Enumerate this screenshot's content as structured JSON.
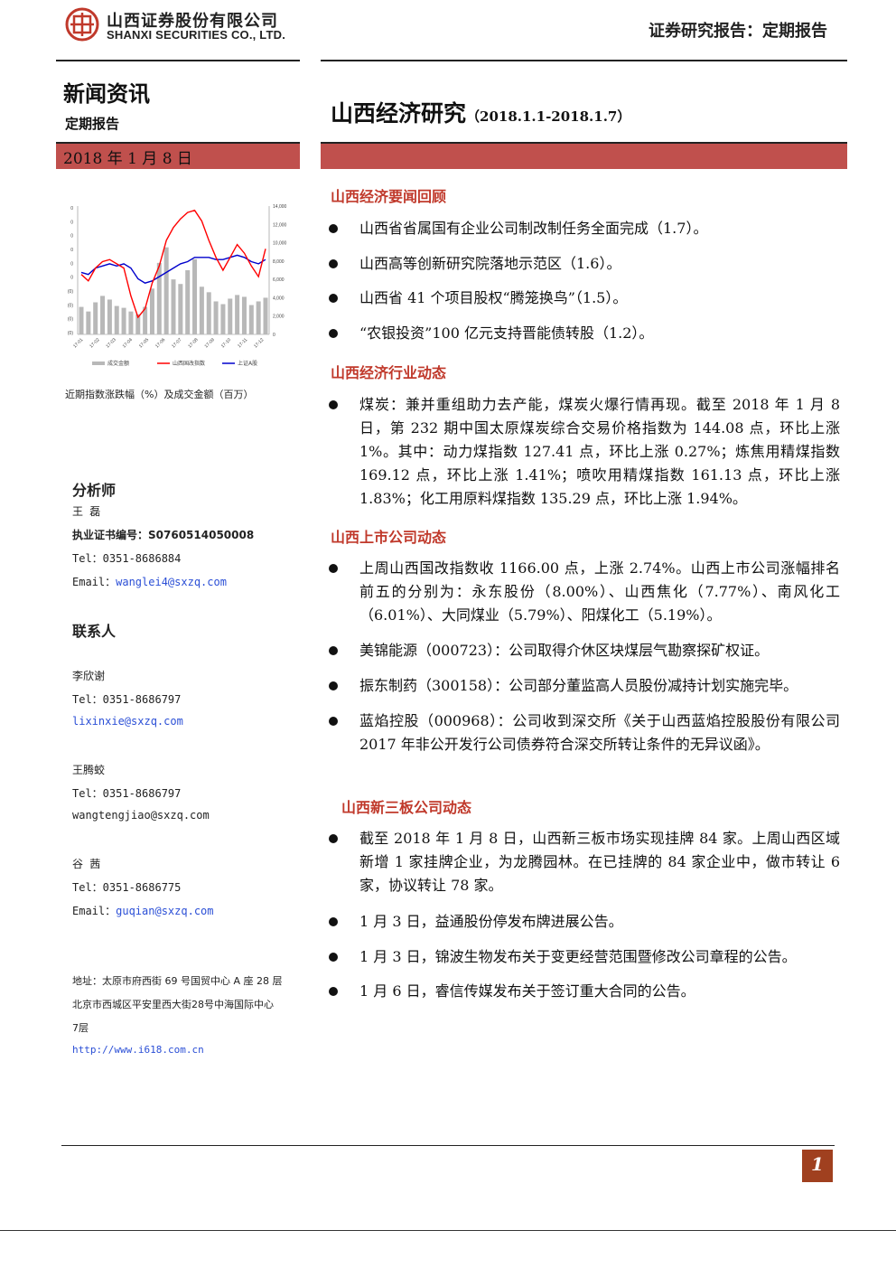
{
  "header": {
    "company_cn": "山西证券股份有限公司",
    "company_en": "SHANXI SECURITIES CO., LTD.",
    "report_type": "证券研究报告：定期报告"
  },
  "left": {
    "section_title": "新闻资讯",
    "subtitle": "定期报告",
    "date": "2018 年 1 月 8 日",
    "chart_caption": "近期指数涨跌幅（%）及成交金额（百万）"
  },
  "chart_data": {
    "type": "line",
    "title": "",
    "x_ticks": [
      "17-01",
      "17-02",
      "17-03",
      "17-04",
      "17-05",
      "17-06",
      "17-07",
      "17-08",
      "17-09",
      "17-10",
      "17-11",
      "17-12"
    ],
    "y_left_ticks": [
      "0",
      "0",
      "0",
      "0",
      "0",
      "0",
      "(0)",
      "(0)",
      "(0)",
      "(0)"
    ],
    "y_right_ticks": [
      "14,000",
      "12,000",
      "10,000",
      "8,000",
      "6,000",
      "4,000",
      "2,000",
      "0"
    ],
    "legend": [
      "成交金额",
      "山西国改指数",
      "上证A股"
    ],
    "series": [
      {
        "name": "山西国改指数",
        "color": "#ff0000",
        "values": [
          -2,
          -5,
          1,
          4,
          5,
          3,
          1,
          -12,
          -22,
          -18,
          -6,
          2,
          14,
          20,
          24,
          27,
          28,
          23,
          14,
          6,
          0,
          6,
          12,
          8,
          2,
          -3,
          10
        ]
      },
      {
        "name": "上证A股",
        "color": "#0000cc",
        "values": [
          -1,
          -2,
          1,
          2,
          3,
          2,
          3,
          1,
          -4,
          -6,
          -5,
          -3,
          -1,
          1,
          3,
          4,
          6,
          6,
          6,
          5,
          5,
          6,
          7,
          6,
          4,
          3,
          5
        ]
      },
      {
        "name": "成交金额",
        "color": "#b8b8b8",
        "values": [
          3000,
          2500,
          3500,
          4200,
          3800,
          3100,
          2900,
          2500,
          2200,
          3000,
          5000,
          7800,
          9500,
          6000,
          5500,
          7000,
          8200,
          5200,
          4600,
          3600,
          3300,
          3900,
          4300,
          4100,
          3200,
          3600,
          4000
        ]
      }
    ]
  },
  "analyst": {
    "heading": "分析师",
    "name": "王 磊",
    "cert_label": "执业证书编号：",
    "cert_no": "S0760514050008",
    "tel": "Tel：0351-8686884",
    "email_label": "Email：",
    "email": "wanglei4@sxzq.com"
  },
  "contacts": {
    "heading": "联系人",
    "people": [
      {
        "name": "李欣谢",
        "tel": "Tel：0351-8686797",
        "email_label": "",
        "email": "lixinxie@sxzq.com"
      },
      {
        "name": "王腾蛟",
        "tel": "Tel：0351-8686797",
        "email_label": "",
        "email": "wangtengjiao@sxzq.com"
      },
      {
        "name": "谷 茜",
        "tel": "Tel：0351-8686775",
        "email_label": "Email：",
        "email": "guqian@sxzq.com"
      }
    ]
  },
  "address": {
    "line1": "地址：太原市府西街 69 号国贸中心 A 座 28 层",
    "line2": "北京市西城区平安里西大街28号中海国际中心",
    "line3": "7层",
    "url": "http://www.i618.com.cn"
  },
  "main": {
    "title": "山西经济研究",
    "range": "（2018.1.1-2018.1.7）",
    "sections": [
      {
        "heading": "山西经济要闻回顾",
        "items": [
          "山西省省属国有企业公司制改制任务全面完成（1.7）。",
          "山西高等创新研究院落地示范区（1.6）。",
          "山西省 41 个项目股权“腾笼换鸟”（1.5）。",
          "“农银投资”100 亿元支持晋能债转股（1.2）。"
        ]
      },
      {
        "heading": "山西经济行业动态",
        "items": [
          "煤炭：兼并重组助力去产能，煤炭火爆行情再现。截至 2018 年 1 月 8 日，第 232 期中国太原煤炭综合交易价格指数为 144.08 点，环比上涨 1%。其中：动力煤指数 127.41 点，环比上涨 0.27%；炼焦用精煤指数 169.12 点，环比上涨 1.41%；喷吹用精煤指数 161.13 点，环比上涨 1.83%；化工用原料煤指数 135.29 点，环比上涨 1.94%。"
        ]
      },
      {
        "heading": "山西上市公司动态",
        "items": [
          "上周山西国改指数收 1166.00 点，上涨 2.74%。山西上市公司涨幅排名前五的分别为：永东股份（8.00%）、山西焦化（7.77%）、南风化工（6.01%）、大同煤业（5.79%）、阳煤化工（5.19%）。",
          "美锦能源（000723）：公司取得介休区块煤层气勘察探矿权证。",
          "振东制药（300158）：公司部分董监高人员股份减持计划实施完毕。",
          "蓝焰控股（000968）：公司收到深交所《关于山西蓝焰控股股份有限公司 2017 年非公开发行公司债券符合深交所转让条件的无异议函》。"
        ]
      },
      {
        "heading": "山西新三板公司动态",
        "items": [
          "截至 2018 年 1 月 8 日，山西新三板市场实现挂牌 84 家。上周山西区域新增 1 家挂牌企业，为龙腾园林。在已挂牌的 84 家企业中，做市转让 6 家，协议转让 78 家。",
          "1 月 3 日，益通股份停发布牌进展公告。",
          "1 月 3 日，锦波生物发布关于变更经营范围暨修改公司章程的公告。",
          "1 月 6 日，睿信传媒发布关于签订重大合同的公告。"
        ]
      }
    ]
  },
  "footer": {
    "page": "1"
  }
}
